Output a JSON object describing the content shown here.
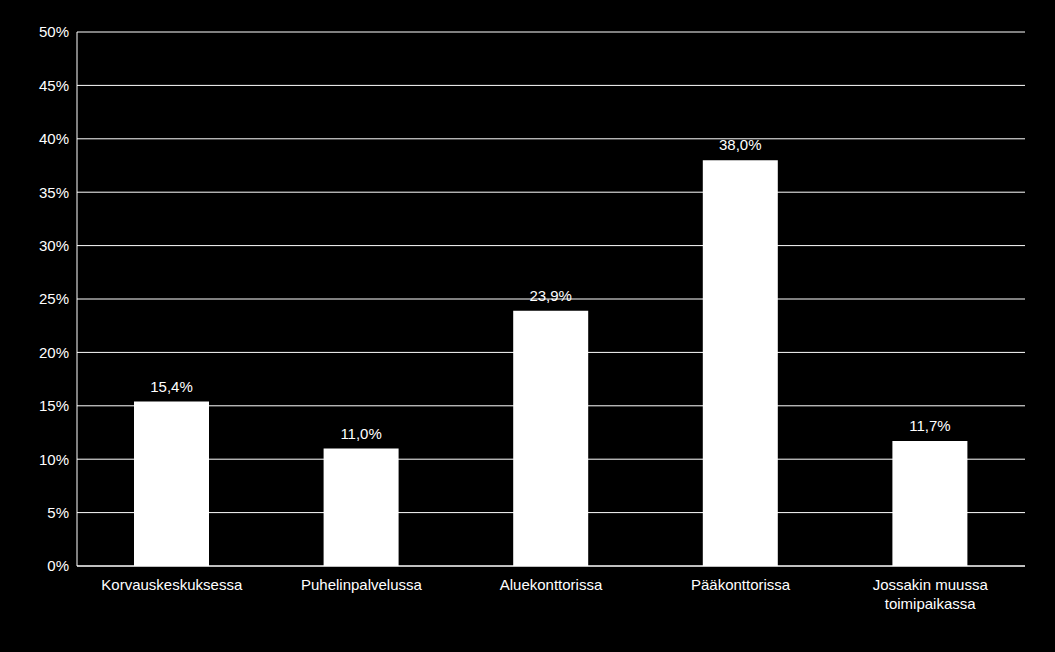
{
  "chart_data": {
    "type": "bar",
    "categories": [
      "Korvauskeskuksessa",
      "Puhelinpalvelussa",
      "Aluekonttorissa",
      "Pääkonttorissa",
      "Jossakin muussa toimipaikassa"
    ],
    "values": [
      15.4,
      11.0,
      23.9,
      38.0,
      11.7
    ],
    "value_labels": [
      "15,4%",
      "11,0%",
      "23,9%",
      "38,0%",
      "11,7%"
    ],
    "color": "#ffffff",
    "ylim": [
      0,
      50
    ],
    "yticks": [
      {
        "value": 0,
        "label": "0%"
      },
      {
        "value": 5,
        "label": "5%"
      },
      {
        "value": 10,
        "label": "10%"
      },
      {
        "value": 15,
        "label": "15%"
      },
      {
        "value": 20,
        "label": "20%"
      },
      {
        "value": 25,
        "label": "25%"
      },
      {
        "value": 30,
        "label": "30%"
      },
      {
        "value": 35,
        "label": "35%"
      },
      {
        "value": 40,
        "label": "40%"
      },
      {
        "value": 45,
        "label": "45%"
      },
      {
        "value": 50,
        "label": "50%"
      }
    ],
    "grid": true,
    "data_labels": true
  }
}
